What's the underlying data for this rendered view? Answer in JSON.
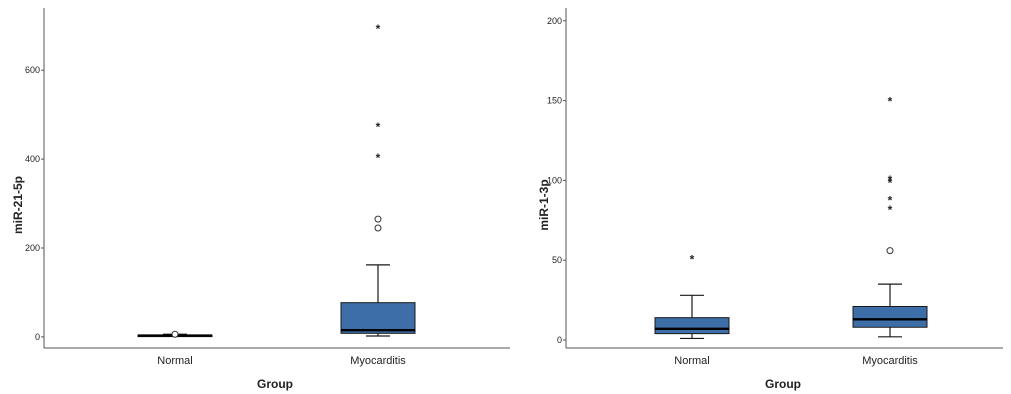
{
  "chart_data": [
    {
      "type": "box",
      "xlabel": "Group",
      "ylabel": "miR-21-5p",
      "ylim": [
        -25,
        740
      ],
      "yticks": [
        0,
        200,
        400,
        600
      ],
      "categories": [
        "Normal",
        "Myocarditis"
      ],
      "boxes": [
        {
          "category": "Normal",
          "min": 1,
          "q1": 2,
          "median": 3,
          "q3": 4,
          "max": 6,
          "outliers_circle": [
            6
          ],
          "outliers_star": []
        },
        {
          "category": "Myocarditis",
          "min": 2,
          "q1": 8,
          "median": 15,
          "q3": 77,
          "max": 162,
          "outliers_circle": [
            245,
            265
          ],
          "outliers_star": [
            405,
            475,
            695
          ]
        }
      ],
      "colors": {
        "box": "#3d6ea8"
      }
    },
    {
      "type": "box",
      "xlabel": "Group",
      "ylabel": "miR-1-3p",
      "ylim": [
        -5,
        208
      ],
      "yticks": [
        0,
        50,
        100,
        150,
        200
      ],
      "categories": [
        "Normal",
        "Myocarditis"
      ],
      "boxes": [
        {
          "category": "Normal",
          "min": 1,
          "q1": 4,
          "median": 7,
          "q3": 14,
          "max": 28,
          "outliers_circle": [],
          "outliers_star": [
            51
          ]
        },
        {
          "category": "Myocarditis",
          "min": 2,
          "q1": 8,
          "median": 13,
          "q3": 21,
          "max": 35,
          "outliers_circle": [
            56
          ],
          "outliers_star": [
            82,
            88,
            99,
            101,
            150
          ]
        }
      ],
      "colors": {
        "box": "#3d6ea8"
      }
    }
  ]
}
